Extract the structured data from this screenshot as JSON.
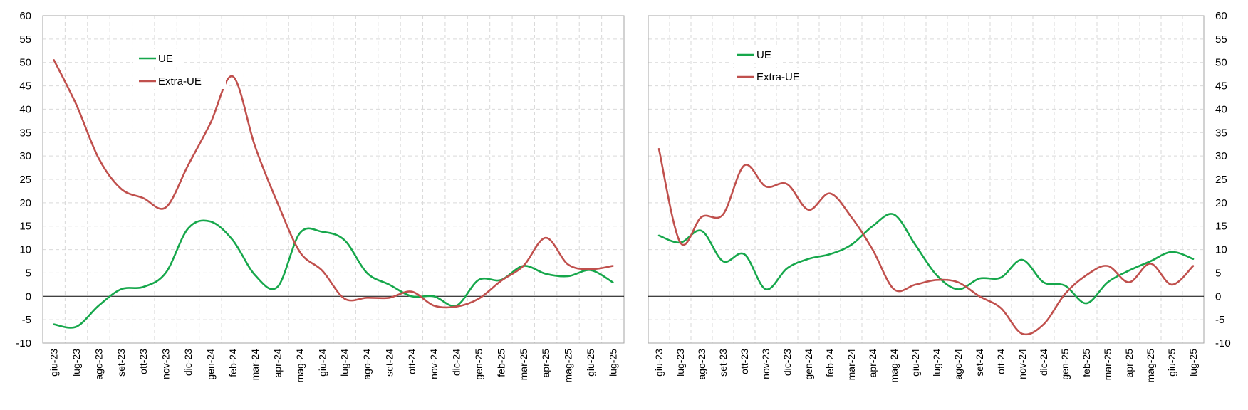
{
  "chart_data": [
    {
      "type": "line",
      "categories": [
        "giu-23",
        "lug-23",
        "ago-23",
        "set-23",
        "ott-23",
        "nov-23",
        "dic-23",
        "gen-24",
        "feb-24",
        "mar-24",
        "apr-24",
        "mag-24",
        "giu-24",
        "lug-24",
        "ago-24",
        "set-24",
        "ott-24",
        "nov-24",
        "dic-24",
        "gen-25",
        "feb-25",
        "mar-25",
        "apr-25",
        "mag-25",
        "giu-25",
        "lug-25"
      ],
      "series": [
        {
          "name": "UE",
          "color": "#16a74b",
          "values": [
            -6,
            -6.5,
            -2,
            1.5,
            2,
            5,
            14.5,
            16,
            12,
            4.5,
            2,
            13.5,
            13.8,
            12,
            5,
            2.5,
            0,
            0,
            -2,
            3.5,
            3.5,
            6.5,
            4.8,
            4.3,
            5.6,
            3
          ]
        },
        {
          "name": "Extra-UE",
          "color": "#c0504d",
          "values": [
            50.5,
            41,
            29.5,
            23,
            21,
            19,
            28,
            37,
            47,
            32,
            20,
            9.5,
            5.5,
            -0.5,
            -0.3,
            -0.3,
            1,
            -2,
            -2.2,
            -0.5,
            3.3,
            6.5,
            12.5,
            6.8,
            5.8,
            6.5
          ]
        }
      ],
      "ylim": [
        -10,
        60
      ],
      "yticks": [
        -10,
        -5,
        0,
        5,
        10,
        15,
        20,
        25,
        30,
        35,
        40,
        45,
        50,
        55,
        60
      ],
      "yaxis_side": "left",
      "legend": "top-left",
      "grid": true
    },
    {
      "type": "line",
      "categories": [
        "giu-23",
        "lug-23",
        "ago-23",
        "set-23",
        "ott-23",
        "nov-23",
        "dic-23",
        "gen-24",
        "feb-24",
        "mar-24",
        "apr-24",
        "mag-24",
        "giu-24",
        "lug-24",
        "ago-24",
        "set-24",
        "ott-24",
        "nov-24",
        "dic-24",
        "gen-25",
        "feb-25",
        "mar-25",
        "apr-25",
        "mag-25",
        "giu-25",
        "lug-25"
      ],
      "series": [
        {
          "name": "UE",
          "color": "#16a74b",
          "values": [
            13,
            11.5,
            14,
            7.5,
            9,
            1.5,
            6,
            8,
            9,
            11,
            15,
            17.5,
            11,
            4.5,
            1.5,
            3.8,
            4,
            7.8,
            3,
            2.3,
            -1.5,
            3,
            5.5,
            7.5,
            9.5,
            8
          ]
        },
        {
          "name": "Extra-UE",
          "color": "#c0504d",
          "values": [
            31.5,
            11.5,
            17,
            17.5,
            28,
            23.5,
            24,
            18.5,
            22,
            17,
            10,
            1.5,
            2.5,
            3.5,
            3,
            0,
            -2.5,
            -8,
            -6,
            0.5,
            4.5,
            6.5,
            3,
            7,
            2.5,
            6.5
          ]
        }
      ],
      "ylim": [
        -10,
        60
      ],
      "yticks": [
        -10,
        -5,
        0,
        5,
        10,
        15,
        20,
        25,
        30,
        35,
        40,
        45,
        50,
        55,
        60
      ],
      "yaxis_side": "right",
      "legend": "top-left",
      "grid": true
    }
  ]
}
